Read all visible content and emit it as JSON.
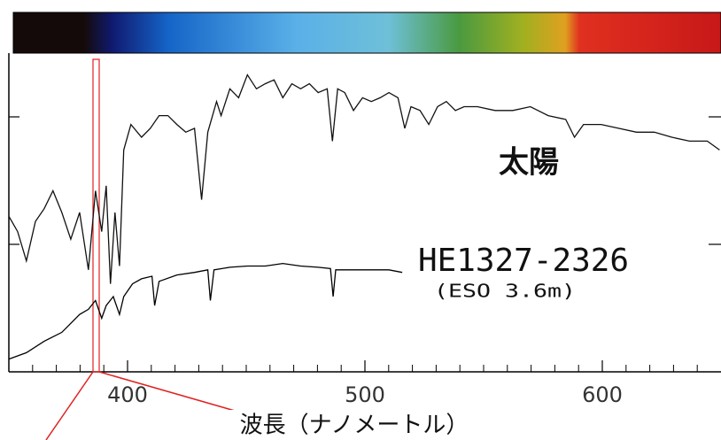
{
  "chart_data": {
    "type": "line",
    "x_label": "波長（ナノメートル）",
    "xlim": [
      350,
      650
    ],
    "ylim": [
      0,
      2.5
    ],
    "xticks": [
      400,
      500,
      600
    ],
    "xminorticks": [
      360,
      370,
      380,
      390,
      410,
      420,
      430,
      440,
      450,
      460,
      470,
      480,
      490,
      510,
      520,
      530,
      540,
      550,
      560,
      570,
      580,
      590,
      610,
      620,
      630,
      640
    ],
    "yticks": [
      1,
      2
    ],
    "series": [
      {
        "name": "太陽",
        "color": "#111111",
        "x": [
          350.0,
          353.7,
          357.4,
          361.2,
          364.9,
          368.6,
          372.3,
          376.1,
          379.8,
          383.5,
          386.5,
          389.1,
          391.0,
          392.8,
          394.7,
          396.6,
          398.4,
          401.4,
          405.9,
          409.6,
          413.3,
          417.0,
          420.8,
          424.5,
          428.2,
          431.2,
          433.8,
          437.5,
          439.4,
          443.1,
          446.8,
          450.5,
          454.3,
          458.0,
          461.7,
          465.4,
          469.2,
          472.9,
          476.6,
          480.3,
          484.1,
          486.3,
          488.5,
          491.5,
          495.2,
          499.0,
          502.7,
          506.4,
          510.1,
          513.9,
          516.8,
          519.4,
          523.2,
          526.9,
          530.6,
          534.3,
          538.1,
          541.8,
          547.4,
          554.8,
          562.3,
          569.7,
          577.2,
          584.6,
          588.3,
          592.1,
          599.5,
          607.0,
          614.4,
          621.9,
          629.3,
          636.7,
          644.2,
          649.4
        ],
        "values": [
          1.22,
          1.1,
          0.87,
          1.18,
          1.28,
          1.42,
          1.25,
          1.04,
          1.25,
          0.8,
          1.42,
          1.1,
          1.46,
          0.69,
          1.25,
          0.83,
          1.74,
          1.94,
          1.84,
          1.91,
          2.01,
          2.01,
          1.94,
          1.88,
          1.91,
          1.35,
          1.88,
          2.12,
          2.01,
          2.22,
          2.15,
          2.33,
          2.22,
          2.26,
          2.29,
          2.15,
          2.26,
          2.22,
          2.26,
          2.19,
          2.22,
          1.81,
          2.22,
          2.19,
          2.05,
          2.15,
          2.12,
          2.15,
          2.19,
          2.15,
          1.91,
          2.08,
          2.05,
          1.94,
          2.08,
          2.12,
          2.05,
          2.08,
          2.08,
          2.05,
          2.05,
          2.08,
          2.01,
          1.98,
          1.84,
          1.94,
          1.94,
          1.91,
          1.88,
          1.88,
          1.84,
          1.81,
          1.81,
          1.74
        ]
      },
      {
        "name": "HE1327-2326",
        "note": "(ESO 3.6m)",
        "color": "#000000",
        "x": [
          350.0,
          357.4,
          364.9,
          372.3,
          379.8,
          383.5,
          386.5,
          389.1,
          391.0,
          394.0,
          396.6,
          398.4,
          402.1,
          405.9,
          410.3,
          411.4,
          413.3,
          420.8,
          428.2,
          433.8,
          434.9,
          436.4,
          443.1,
          450.5,
          458.0,
          465.4,
          472.9,
          480.3,
          485.5,
          486.6,
          487.7,
          495.2,
          502.7,
          510.1,
          515.7
        ],
        "values": [
          0.1,
          0.15,
          0.24,
          0.31,
          0.45,
          0.49,
          0.56,
          0.42,
          0.52,
          0.59,
          0.45,
          0.59,
          0.69,
          0.73,
          0.75,
          0.52,
          0.71,
          0.76,
          0.78,
          0.8,
          0.56,
          0.8,
          0.82,
          0.83,
          0.83,
          0.85,
          0.83,
          0.82,
          0.81,
          0.59,
          0.8,
          0.8,
          0.8,
          0.8,
          0.78
        ]
      }
    ]
  }
}
